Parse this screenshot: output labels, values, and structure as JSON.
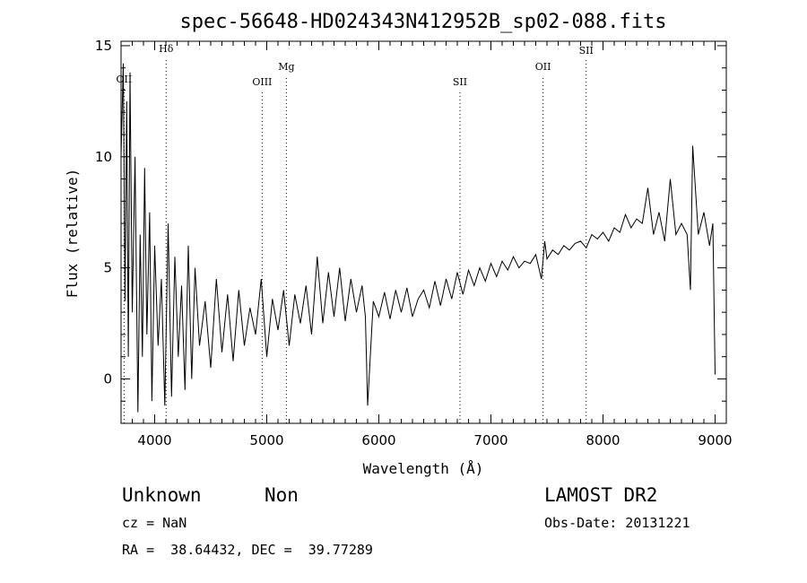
{
  "chart_data": {
    "type": "line",
    "title": "spec-56648-HD024343N412952B_sp02-088.fits",
    "xlabel": "Wavelength (Å)",
    "ylabel": "Flux (relative)",
    "xlim": [
      3700,
      9100
    ],
    "ylim": [
      -2,
      15.2
    ],
    "x_ticks": [
      4000,
      5000,
      6000,
      7000,
      8000,
      9000
    ],
    "y_ticks": [
      0,
      5,
      10,
      15
    ],
    "grid": false,
    "series": [
      {
        "x": [
          3700,
          3720,
          3735,
          3750,
          3765,
          3780,
          3800,
          3825,
          3850,
          3870,
          3890,
          3910,
          3930,
          3955,
          3975,
          4000,
          4030,
          4060,
          4090,
          4120,
          4150,
          4180,
          4210,
          4240,
          4270,
          4300,
          4330,
          4360,
          4400,
          4450,
          4500,
          4550,
          4600,
          4650,
          4700,
          4750,
          4800,
          4850,
          4900,
          4950,
          5000,
          5050,
          5100,
          5150,
          5200,
          5250,
          5300,
          5350,
          5400,
          5450,
          5500,
          5550,
          5600,
          5650,
          5700,
          5750,
          5800,
          5850,
          5880,
          5900,
          5950,
          6000,
          6050,
          6100,
          6150,
          6200,
          6250,
          6300,
          6350,
          6400,
          6450,
          6500,
          6550,
          6600,
          6650,
          6700,
          6750,
          6800,
          6850,
          6900,
          6950,
          7000,
          7050,
          7100,
          7150,
          7200,
          7250,
          7300,
          7350,
          7400,
          7450,
          7480,
          7500,
          7550,
          7600,
          7650,
          7700,
          7750,
          7800,
          7850,
          7900,
          7950,
          8000,
          8050,
          8100,
          8150,
          8200,
          8250,
          8300,
          8350,
          8400,
          8450,
          8500,
          8550,
          8600,
          8650,
          8700,
          8750,
          8780,
          8800,
          8850,
          8900,
          8950,
          8980,
          9000
        ],
        "values": [
          10.0,
          14.2,
          3.5,
          12.5,
          1.0,
          13.8,
          3.0,
          10.0,
          -1.5,
          6.5,
          1.0,
          9.5,
          2.0,
          7.5,
          -1.0,
          6.0,
          1.5,
          4.5,
          -1.2,
          7.0,
          -0.8,
          5.5,
          1.0,
          4.2,
          -0.5,
          6.0,
          0.0,
          5.0,
          1.5,
          3.5,
          0.5,
          4.5,
          1.2,
          3.8,
          0.8,
          4.0,
          1.5,
          3.2,
          2.0,
          4.5,
          1.0,
          3.6,
          2.2,
          4.0,
          1.5,
          3.8,
          2.5,
          4.2,
          2.0,
          5.5,
          2.5,
          4.8,
          2.8,
          5.0,
          2.6,
          4.5,
          3.0,
          4.2,
          2.8,
          -1.2,
          3.5,
          2.8,
          3.9,
          2.7,
          4.0,
          3.0,
          4.1,
          2.8,
          3.6,
          4.0,
          3.2,
          4.4,
          3.3,
          4.5,
          3.6,
          4.8,
          3.8,
          4.9,
          4.2,
          5.0,
          4.4,
          5.2,
          4.6,
          5.3,
          4.9,
          5.5,
          5.0,
          5.3,
          5.2,
          5.6,
          4.5,
          6.2,
          5.4,
          5.8,
          5.6,
          6.0,
          5.8,
          6.1,
          6.2,
          5.9,
          6.5,
          6.3,
          6.6,
          6.2,
          6.8,
          6.6,
          7.4,
          6.8,
          7.2,
          7.0,
          8.6,
          6.5,
          7.5,
          6.2,
          9.0,
          6.5,
          7.0,
          6.5,
          4.0,
          10.5,
          6.5,
          7.5,
          6.0,
          7.0,
          0.2
        ]
      }
    ],
    "annotations": [
      {
        "label": "OII",
        "x": 3727
      },
      {
        "label": "Hδ",
        "x": 4102
      },
      {
        "label": "OIII",
        "x": 4959
      },
      {
        "label": "Mg",
        "x": 5175
      },
      {
        "label": "SII",
        "x": 6724
      },
      {
        "label": "OII",
        "x": 7465
      },
      {
        "label": "SII",
        "x": 7850
      }
    ]
  },
  "info": {
    "class_label": "Unknown",
    "subclass_label": "Non",
    "survey_label": "LAMOST DR2",
    "cz_line": "cz = NaN",
    "obs_date_line": "Obs-Date: 20131221",
    "coords_line": "RA =  38.64432, DEC =  39.77289"
  }
}
